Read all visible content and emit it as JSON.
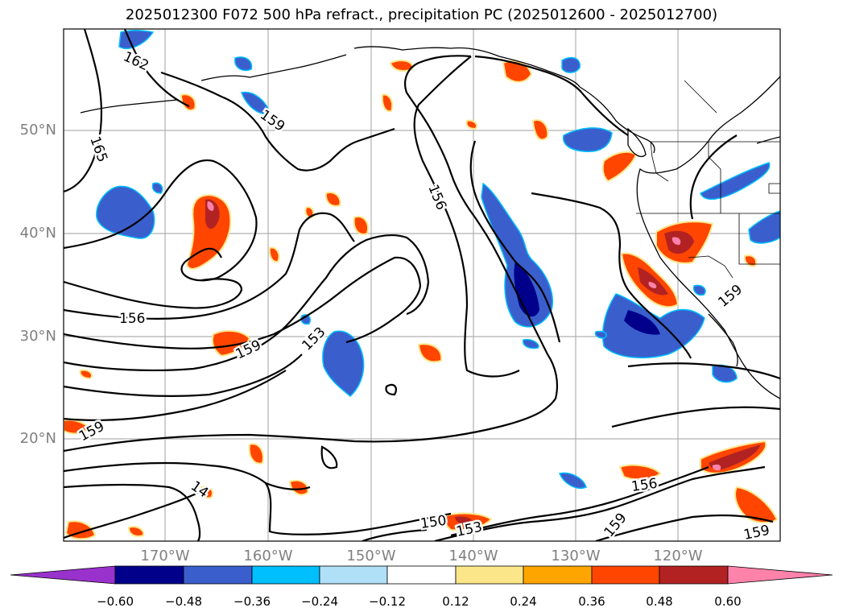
{
  "title": "2025012300 F072 500 hPa refract., precipitation PC (2025012600 - 2025012700)",
  "lat_labels": [
    "50°N",
    "40°N",
    "30°N",
    "20°N"
  ],
  "lon_labels": [
    "170°W",
    "160°W",
    "150°W",
    "140°W",
    "130°W",
    "120°W"
  ],
  "contour_labels": [
    "162",
    "159",
    "165",
    "156",
    "156",
    "159",
    "153",
    "159",
    "159",
    "14",
    "150",
    "153",
    "156",
    "159",
    "159"
  ],
  "colorbar": {
    "ticks": [
      "−0.60",
      "−0.48",
      "−0.36",
      "−0.24",
      "−0.12",
      "0.12",
      "0.24",
      "0.36",
      "0.48",
      "0.60"
    ],
    "colors": [
      "#9932cc",
      "#00008b",
      "#3a5fcd",
      "#00bfff",
      "#b0e0f8",
      "#ffffff",
      "#fce68a",
      "#ffa500",
      "#ff4500",
      "#b22222",
      "#ff82ab"
    ]
  },
  "colors": {
    "coast": "#000000",
    "grid": "#b0b0b0",
    "contour": "#000000"
  }
}
